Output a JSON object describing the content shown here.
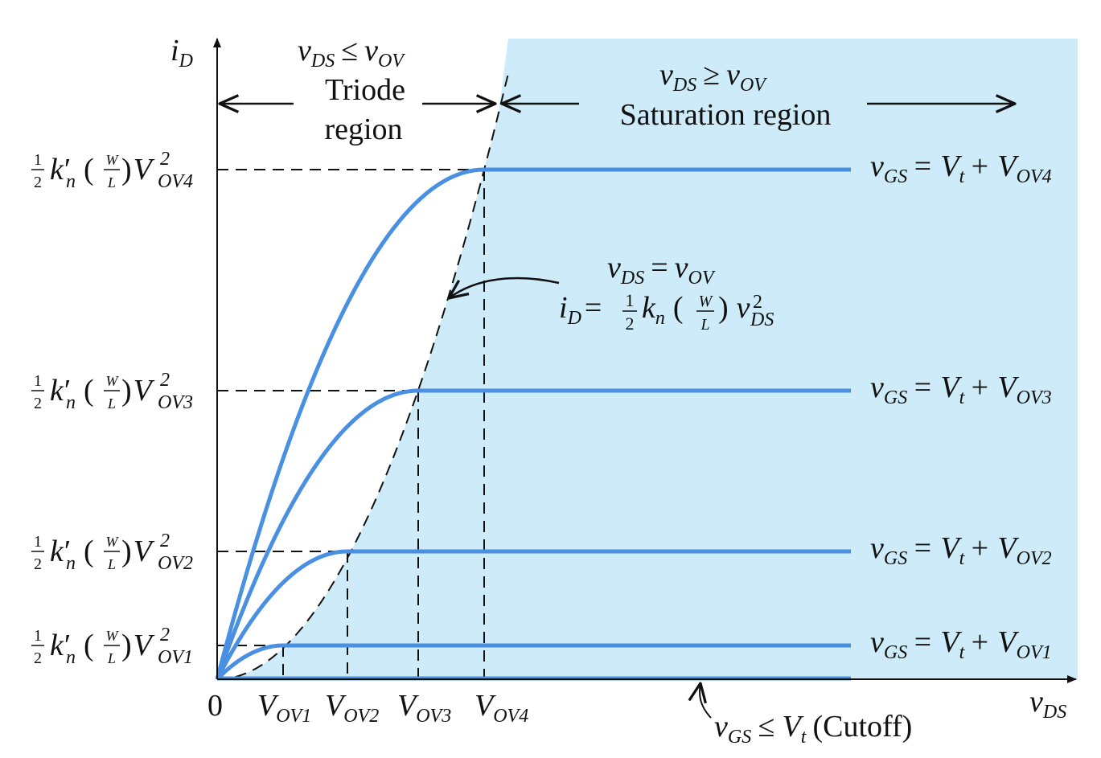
{
  "colors": {
    "saturation_fill": "#cdebf8",
    "curve": "#4a90e2",
    "axis": "#111111"
  },
  "axes": {
    "y_label_main": "i",
    "y_label_sub": "D",
    "x_label_main": "v",
    "x_label_sub": "DS",
    "origin": "0"
  },
  "triode": {
    "condition_v": "v",
    "condition_sub1": "DS",
    "condition_op": "≤",
    "condition_sub2": "OV",
    "line1": "Triode",
    "line2": "region"
  },
  "saturation": {
    "condition_v": "v",
    "condition_sub1": "DS",
    "condition_op": "≥",
    "condition_sub2": "OV",
    "line1": "Saturation region"
  },
  "boundary": {
    "eq1_v": "v",
    "eq1_sub1": "DS",
    "eq1_op": "=",
    "eq1_sub2": "OV",
    "eq2_i": "i",
    "eq2_isub": "D",
    "eq2_eq": "=",
    "eq2_frac_num": "1",
    "eq2_frac_den": "2",
    "eq2_k": "k",
    "eq2_ksub": "n",
    "eq2_w": "W",
    "eq2_l": "L",
    "eq2_v": "v",
    "eq2_vsub": "DS",
    "eq2_vsup": "2"
  },
  "y_levels": [
    {
      "sub": "OV4"
    },
    {
      "sub": "OV3"
    },
    {
      "sub": "OV2"
    },
    {
      "sub": "OV1"
    }
  ],
  "y_label_parts": {
    "frac_num": "1",
    "frac_den": "2",
    "k": "k",
    "prime": "′",
    "ksub": "n",
    "w": "W",
    "l": "L",
    "V": "V",
    "sup": "2"
  },
  "x_ticks": [
    {
      "main": "V",
      "sub": "OV1"
    },
    {
      "main": "V",
      "sub": "OV2"
    },
    {
      "main": "V",
      "sub": "OV3"
    },
    {
      "main": "V",
      "sub": "OV4"
    }
  ],
  "curve_labels": [
    {
      "v": "v",
      "vsub": "GS",
      "eq": "= V",
      "tsub": "t",
      "plus": "+ V",
      "osub": "OV4"
    },
    {
      "v": "v",
      "vsub": "GS",
      "eq": "= V",
      "tsub": "t",
      "plus": "+ V",
      "osub": "OV3"
    },
    {
      "v": "v",
      "vsub": "GS",
      "eq": "= V",
      "tsub": "t",
      "plus": "+ V",
      "osub": "OV2"
    },
    {
      "v": "v",
      "vsub": "GS",
      "eq": "= V",
      "tsub": "t",
      "plus": "+ V",
      "osub": "OV1"
    }
  ],
  "cutoff": {
    "v": "v",
    "vsub": "GS",
    "op": "≤ V",
    "tsub": "t",
    "text": "(Cutoff)"
  }
}
